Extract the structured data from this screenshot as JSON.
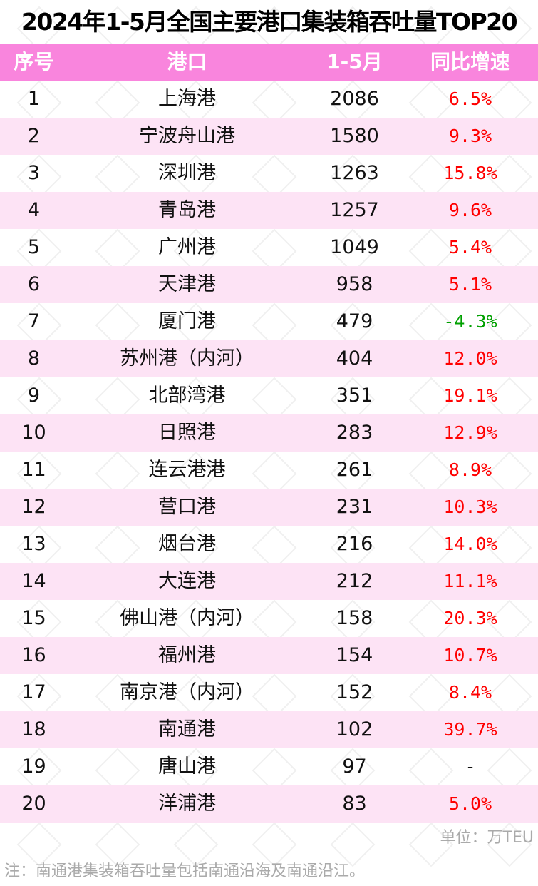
{
  "title": "2024年1-5月全国主要港口集装箱吞吐量TOP20",
  "colors": {
    "header_bg": "#f985dd",
    "alt_row": "#fde3f5",
    "positive": "#ff0000",
    "negative": "#00a000"
  },
  "chart_data": {
    "type": "table",
    "title": "2024年1-5月全国主要港口集装箱吞吐量TOP20",
    "columns": [
      "序号",
      "港口",
      "1-5月",
      "同比增速"
    ],
    "rows": [
      [
        "1",
        "上海港",
        "2086",
        "6.5%"
      ],
      [
        "2",
        "宁波舟山港",
        "1580",
        "9.3%"
      ],
      [
        "3",
        "深圳港",
        "1263",
        "15.8%"
      ],
      [
        "4",
        "青岛港",
        "1257",
        "9.6%"
      ],
      [
        "5",
        "广州港",
        "1049",
        "5.4%"
      ],
      [
        "6",
        "天津港",
        "958",
        "5.1%"
      ],
      [
        "7",
        "厦门港",
        "479",
        "-4.3%"
      ],
      [
        "8",
        "苏州港（内河）",
        "404",
        "12.0%"
      ],
      [
        "9",
        "北部湾港",
        "351",
        "19.1%"
      ],
      [
        "10",
        "日照港",
        "283",
        "12.9%"
      ],
      [
        "11",
        "连云港港",
        "261",
        "8.9%"
      ],
      [
        "12",
        "营口港",
        "231",
        "10.3%"
      ],
      [
        "13",
        "烟台港",
        "216",
        "14.0%"
      ],
      [
        "14",
        "大连港",
        "212",
        "11.1%"
      ],
      [
        "15",
        "佛山港（内河）",
        "158",
        "20.3%"
      ],
      [
        "16",
        "福州港",
        "154",
        "10.7%"
      ],
      [
        "17",
        "南京港（内河）",
        "152",
        "8.4%"
      ],
      [
        "18",
        "南通港",
        "102",
        "39.7%"
      ],
      [
        "19",
        "唐山港",
        "97",
        "-"
      ],
      [
        "20",
        "洋浦港",
        "83",
        "5.0%"
      ]
    ],
    "unit": "单位：万TEU",
    "note": "注：南通港集装箱吞吐量包括南通沿海及南通沿江。"
  }
}
